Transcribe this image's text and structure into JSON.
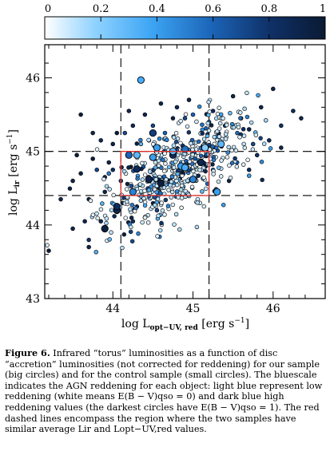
{
  "chart_data": {
    "type": "scatter",
    "xlabel": "log L",
    "xlabel_sub": "opt−UV, red",
    "xlabel_unit": " [erg s",
    "xlabel_exp": "−1",
    "xlabel_close": "]",
    "ylabel": "log L",
    "ylabel_sub": "ir",
    "ylabel_unit": " [erg s",
    "ylabel_exp": "−1",
    "ylabel_close": "]",
    "xlim": [
      43.15,
      46.65
    ],
    "ylim": [
      43.0,
      46.45
    ],
    "xticks": [
      "44",
      "45",
      "46"
    ],
    "yticks": [
      "43",
      "44",
      "45",
      "46"
    ],
    "colorbar": {
      "ticks": [
        "0",
        "0.2",
        "0.4",
        "0.6",
        "0.8",
        "1"
      ],
      "range": [
        0,
        1
      ]
    },
    "dashed_lines": {
      "x": [
        44.1,
        45.2
      ],
      "y": [
        44.4,
        45.0
      ]
    },
    "red_box": {
      "x": [
        44.1,
        45.2
      ],
      "y": [
        44.4,
        45.0
      ]
    },
    "series": [
      {
        "sample": "our sample (big circles)",
        "points": [
          [
            44.35,
            45.97,
            0.35
          ],
          [
            44.5,
            45.25,
            0.75
          ],
          [
            44.05,
            44.2,
            0.9
          ],
          [
            43.9,
            43.95,
            0.95
          ],
          [
            44.2,
            44.95,
            0.6
          ],
          [
            44.75,
            44.95,
            0.85
          ],
          [
            44.85,
            44.8,
            0.4
          ],
          [
            45.35,
            45.1,
            0.3
          ],
          [
            44.45,
            44.62,
            0.9
          ],
          [
            44.55,
            45.05,
            0.4
          ],
          [
            44.9,
            45.03,
            0.55
          ],
          [
            44.9,
            44.78,
            0.35
          ],
          [
            44.3,
            44.76,
            0.85
          ],
          [
            44.6,
            44.57,
            0.95
          ],
          [
            45.0,
            44.62,
            0.5
          ],
          [
            44.05,
            44.25,
            0.85
          ],
          [
            45.3,
            44.45,
            0.4
          ],
          [
            45.1,
            44.85,
            0.9
          ],
          [
            44.75,
            45.0,
            0.3
          ],
          [
            44.25,
            44.45,
            0.5
          ],
          [
            44.5,
            44.92,
            0.4
          ],
          [
            45.15,
            45.05,
            0.2
          ],
          [
            44.3,
            44.95,
            0.3
          ]
        ]
      },
      {
        "sample": "control sample (small circles)",
        "points": [
          [
            43.35,
            44.35,
            0.9
          ],
          [
            43.2,
            43.65,
            0.95
          ],
          [
            43.55,
            44.95,
            0.95
          ],
          [
            43.75,
            45.25,
            0.9
          ],
          [
            43.75,
            44.9,
            0.95
          ],
          [
            43.85,
            44.05,
            0.85
          ],
          [
            43.9,
            44.65,
            0.9
          ],
          [
            43.65,
            44.05,
            0.9
          ],
          [
            43.5,
            44.6,
            0.9
          ],
          [
            43.7,
            44.35,
            0.95
          ],
          [
            44.0,
            45.1,
            0.9
          ],
          [
            44.05,
            45.25,
            0.95
          ],
          [
            43.8,
            44.75,
            0.7
          ],
          [
            44.2,
            45.55,
            0.9
          ],
          [
            44.25,
            45.35,
            0.85
          ],
          [
            43.95,
            44.85,
            0.9
          ],
          [
            43.9,
            44.45,
            0.9
          ],
          [
            44.15,
            45.25,
            0.7
          ],
          [
            43.6,
            44.7,
            0.9
          ],
          [
            44.4,
            45.5,
            0.9
          ],
          [
            44.95,
            45.7,
            0.9
          ],
          [
            45.5,
            45.75,
            0.9
          ],
          [
            45.25,
            45.55,
            0.85
          ],
          [
            45.4,
            45.35,
            0.8
          ],
          [
            45.6,
            45.45,
            0.9
          ],
          [
            45.85,
            45.6,
            0.9
          ],
          [
            46.0,
            45.85,
            0.9
          ],
          [
            46.25,
            45.55,
            0.85
          ],
          [
            46.1,
            45.35,
            0.8
          ],
          [
            45.75,
            45.1,
            0.7
          ],
          [
            45.95,
            45.15,
            0.85
          ],
          [
            45.45,
            44.6,
            0.9
          ],
          [
            45.55,
            44.85,
            0.6
          ],
          [
            45.7,
            44.75,
            0.85
          ],
          [
            45.8,
            44.95,
            0.8
          ],
          [
            44.75,
            45.45,
            0.9
          ],
          [
            44.6,
            45.65,
            0.9
          ],
          [
            44.9,
            45.45,
            0.7
          ],
          [
            45.1,
            45.25,
            0.8
          ],
          [
            44.5,
            45.35,
            0.7
          ],
          [
            43.6,
            45.5,
            0.95
          ],
          [
            43.5,
            43.95,
            0.9
          ],
          [
            44.35,
            45.1,
            0.3
          ],
          [
            44.1,
            44.6,
            0.75
          ],
          [
            45.0,
            45.5,
            0.6
          ],
          [
            45.2,
            45.4,
            0.7
          ],
          [
            45.3,
            45.2,
            0.5
          ],
          [
            45.25,
            44.75,
            0.6
          ],
          [
            44.65,
            45.25,
            0.6
          ],
          [
            44.45,
            45.15,
            0.5
          ],
          [
            44.4,
            44.1,
            0.6
          ],
          [
            44.3,
            44.25,
            0.9
          ],
          [
            44.6,
            44.3,
            0.5
          ],
          [
            44.0,
            44.75,
            0.8
          ],
          [
            43.95,
            44.7,
            0.5
          ],
          [
            44.55,
            44.2,
            0.7
          ],
          [
            45.7,
            45.3,
            0.9
          ],
          [
            46.1,
            45.05,
            0.9
          ],
          [
            46.35,
            45.45,
            0.9
          ],
          [
            44.8,
            45.6,
            0.85
          ],
          [
            43.85,
            45.15,
            0.85
          ],
          [
            44.25,
            44.05,
            0.8
          ],
          [
            43.7,
            43.7,
            0.9
          ]
        ]
      }
    ]
  },
  "caption": {
    "label": "Figure 6.",
    "text": " Infrared “torus” luminosities as a function of disc “accretion” luminosities (not corrected for reddening) for our sample (big circles) and for the control sample (small circles). The bluescale indicates the AGN reddening for each object: light blue represent low reddening (white means E(B − V)qso = 0) and dark blue high reddening values (the darkest circles have E(B − V)qso = 1).  The red dashed lines encompass the region where the two samples have similar average Lir and Lopt−UV,red values."
  }
}
